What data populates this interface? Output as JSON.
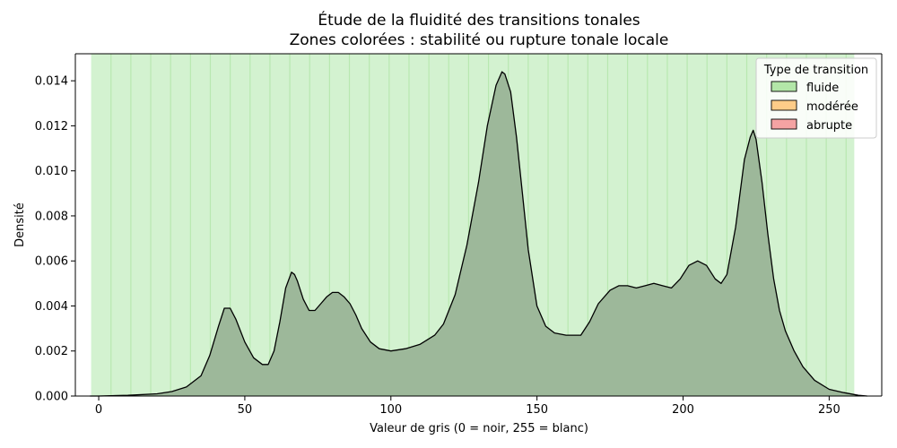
{
  "chart_data": {
    "type": "area",
    "title": "Étude de la fluidité des transitions tonales",
    "subtitle": "Zones colorées : stabilité ou rupture tonale locale",
    "xlabel": "Valeur de gris (0 = noir, 255 = blanc)",
    "ylabel": "Densité",
    "xlim": [
      -8,
      268
    ],
    "ylim": [
      0,
      0.0152
    ],
    "x_ticks": [
      0,
      50,
      100,
      150,
      200,
      250
    ],
    "y_ticks": [
      0.0,
      0.002,
      0.004,
      0.006,
      0.008,
      0.01,
      0.012,
      0.014
    ],
    "x_tick_labels": [
      "0",
      "50",
      "100",
      "150",
      "200",
      "250"
    ],
    "y_tick_labels": [
      "0.000",
      "0.002",
      "0.004",
      "0.006",
      "0.008",
      "0.010",
      "0.012",
      "0.014"
    ],
    "grid": false,
    "legend": {
      "title": "Type de transition",
      "position": "top-right",
      "entries": [
        {
          "label": "fluide",
          "color": "#b3e6a8"
        },
        {
          "label": "modérée",
          "color": "#ffcc88"
        },
        {
          "label": "abrupte",
          "color": "#f4a3a3"
        }
      ]
    },
    "zone_color": "#d3f2d0",
    "zone_line_color": "#b8e8b0",
    "zones": {
      "classification": "fluide",
      "x_start": -2.6,
      "x_end": 258.6,
      "width": 6.8
    },
    "fill_color": "#9db89a",
    "line_color": "#000000",
    "series": [
      {
        "x": [
          -3,
          0,
          10,
          20,
          25,
          30,
          35,
          38,
          41,
          43,
          45,
          47,
          50,
          53,
          56,
          58,
          60,
          62,
          64,
          66,
          67,
          68,
          70,
          72,
          74,
          76,
          78,
          80,
          82,
          84,
          86,
          88,
          90,
          93,
          96,
          100,
          105,
          110,
          115,
          118,
          122,
          126,
          130,
          133,
          136,
          138,
          139,
          141,
          143,
          145,
          147,
          150,
          153,
          156,
          160,
          165,
          168,
          171,
          175,
          178,
          181,
          184,
          187,
          190,
          193,
          196,
          199,
          202,
          205,
          208,
          211,
          213,
          215,
          218,
          221,
          223,
          224,
          225,
          227,
          229,
          231,
          233,
          235,
          238,
          241,
          245,
          250,
          255,
          260,
          263
        ],
        "y": [
          0.0,
          0.0,
          3e-05,
          0.0001,
          0.0002,
          0.0004,
          0.0009,
          0.0018,
          0.0031,
          0.0039,
          0.0039,
          0.0034,
          0.0024,
          0.0017,
          0.0014,
          0.0014,
          0.002,
          0.0033,
          0.0048,
          0.0055,
          0.0054,
          0.0051,
          0.0043,
          0.0038,
          0.0038,
          0.0041,
          0.0044,
          0.0046,
          0.0046,
          0.0044,
          0.0041,
          0.0036,
          0.003,
          0.0024,
          0.0021,
          0.002,
          0.0021,
          0.0023,
          0.0027,
          0.0032,
          0.0045,
          0.0067,
          0.0095,
          0.012,
          0.0138,
          0.0144,
          0.0143,
          0.0135,
          0.0115,
          0.009,
          0.0065,
          0.004,
          0.0031,
          0.0028,
          0.0027,
          0.0027,
          0.0033,
          0.0041,
          0.0047,
          0.0049,
          0.0049,
          0.0048,
          0.0049,
          0.005,
          0.0049,
          0.0048,
          0.0052,
          0.0058,
          0.006,
          0.0058,
          0.0052,
          0.005,
          0.0054,
          0.0075,
          0.0105,
          0.0115,
          0.0118,
          0.0114,
          0.0095,
          0.0072,
          0.0052,
          0.0038,
          0.0029,
          0.002,
          0.0013,
          0.0007,
          0.0003,
          0.00015,
          3e-05,
          0.0
        ]
      }
    ]
  }
}
